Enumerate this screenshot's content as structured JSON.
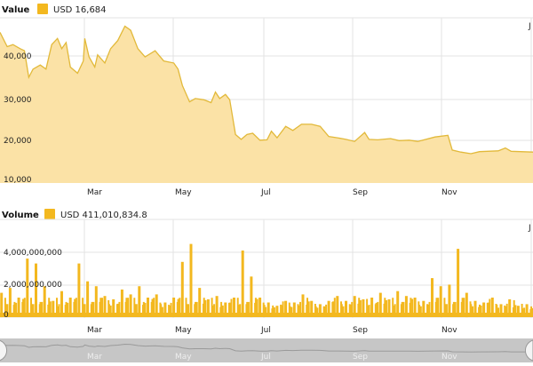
{
  "colors": {
    "value_fill": "#fbe2a6",
    "value_line": "#e2b93a",
    "volume_bar": "#f3b81f",
    "swatch": "#f3b81f",
    "navigator": "#c6c6c6"
  },
  "chart_data": [
    {
      "type": "area",
      "panel_title": "Value",
      "legend": {
        "currency": "USD",
        "value": "16,684",
        "label": "USD 16,684"
      },
      "y_ticks": [
        "10,000",
        "20,000",
        "30,000",
        "40,000"
      ],
      "y_tick_values": [
        10000,
        20000,
        30000,
        40000
      ],
      "ylim": [
        10000,
        50000
      ],
      "x_ticks": [
        "Mar",
        "May",
        "Jul",
        "Sep",
        "Nov"
      ],
      "x_tick_cut": "J",
      "grid": true,
      "points": [
        [
          "2021-12-24",
          46000
        ],
        [
          "2021-12-28",
          42500
        ],
        [
          "2022-01-01",
          43000
        ],
        [
          "2022-01-06",
          42000
        ],
        [
          "2022-01-09",
          41500
        ],
        [
          "2022-01-12",
          35000
        ],
        [
          "2022-01-15",
          37000
        ],
        [
          "2022-01-20",
          38000
        ],
        [
          "2022-01-24",
          37000
        ],
        [
          "2022-01-28",
          43000
        ],
        [
          "2022-02-01",
          44500
        ],
        [
          "2022-02-04",
          42000
        ],
        [
          "2022-02-07",
          43500
        ],
        [
          "2022-02-10",
          37500
        ],
        [
          "2022-02-15",
          36000
        ],
        [
          "2022-02-19",
          39000
        ],
        [
          "2022-02-20",
          44500
        ],
        [
          "2022-02-23",
          40000
        ],
        [
          "2022-02-27",
          37500
        ],
        [
          "2022-03-01",
          40500
        ],
        [
          "2022-03-06",
          38500
        ],
        [
          "2022-03-10",
          42000
        ],
        [
          "2022-03-15",
          44000
        ],
        [
          "2022-03-20",
          47500
        ],
        [
          "2022-03-24",
          46500
        ],
        [
          "2022-03-29",
          42000
        ],
        [
          "2022-04-03",
          40000
        ],
        [
          "2022-04-10",
          41500
        ],
        [
          "2022-04-16",
          39000
        ],
        [
          "2022-04-23",
          38500
        ],
        [
          "2022-04-26",
          37000
        ],
        [
          "2022-04-29",
          33000
        ],
        [
          "2022-05-04",
          29000
        ],
        [
          "2022-05-08",
          29800
        ],
        [
          "2022-05-14",
          29500
        ],
        [
          "2022-05-19",
          28800
        ],
        [
          "2022-05-22",
          31400
        ],
        [
          "2022-05-25",
          29800
        ],
        [
          "2022-05-29",
          30800
        ],
        [
          "2022-06-01",
          29500
        ],
        [
          "2022-06-05",
          21000
        ],
        [
          "2022-06-09",
          19800
        ],
        [
          "2022-06-13",
          21000
        ],
        [
          "2022-06-17",
          21300
        ],
        [
          "2022-06-22",
          19600
        ],
        [
          "2022-06-27",
          19700
        ],
        [
          "2022-06-30",
          21800
        ],
        [
          "2022-07-04",
          20200
        ],
        [
          "2022-07-10",
          23000
        ],
        [
          "2022-07-15",
          22000
        ],
        [
          "2022-07-21",
          23500
        ],
        [
          "2022-07-28",
          23500
        ],
        [
          "2022-08-03",
          23000
        ],
        [
          "2022-08-09",
          20500
        ],
        [
          "2022-08-15",
          20200
        ],
        [
          "2022-08-21",
          19800
        ],
        [
          "2022-08-27",
          19300
        ],
        [
          "2022-09-03",
          21500
        ],
        [
          "2022-09-06",
          19800
        ],
        [
          "2022-09-12",
          19700
        ],
        [
          "2022-09-21",
          20000
        ],
        [
          "2022-09-27",
          19500
        ],
        [
          "2022-10-04",
          19600
        ],
        [
          "2022-10-10",
          19300
        ],
        [
          "2022-10-22",
          20400
        ],
        [
          "2022-10-31",
          20800
        ],
        [
          "2022-11-03",
          17200
        ],
        [
          "2022-11-09",
          16700
        ],
        [
          "2022-11-16",
          16300
        ],
        [
          "2022-11-22",
          16800
        ],
        [
          "2022-12-05",
          17000
        ],
        [
          "2022-12-10",
          17700
        ],
        [
          "2022-12-14",
          16900
        ],
        [
          "2022-12-29",
          16700
        ]
      ]
    },
    {
      "type": "bar",
      "panel_title": "Volume",
      "legend": {
        "currency": "USD",
        "value": "411,010,834.8",
        "label": "USD 411,010,834.8"
      },
      "y_ticks": [
        "0",
        "2,000,000,000",
        "4,000,000,000"
      ],
      "y_tick_values": [
        0,
        2000000000,
        4000000000
      ],
      "ylim": [
        0,
        6000000000
      ],
      "x_ticks": [
        "Mar",
        "May",
        "Jul",
        "Sep",
        "Nov"
      ],
      "x_tick_cut": "J",
      "grid": true,
      "points": [
        [
          "2021-12-24",
          1500000000.0
        ],
        [
          "2021-12-30",
          1800000000.0
        ],
        [
          "2022-01-05",
          1200000000.0
        ],
        [
          "2022-01-11",
          3600000000.0
        ],
        [
          "2022-01-17",
          3300000000.0
        ],
        [
          "2022-01-23",
          1900000000.0
        ],
        [
          "2022-01-29",
          1000000000.0
        ],
        [
          "2022-02-04",
          1600000000.0
        ],
        [
          "2022-02-10",
          1200000000.0
        ],
        [
          "2022-02-16",
          3300000000.0
        ],
        [
          "2022-02-22",
          2200000000.0
        ],
        [
          "2022-02-28",
          1900000000.0
        ],
        [
          "2022-03-06",
          1300000000.0
        ],
        [
          "2022-03-12",
          1100000000.0
        ],
        [
          "2022-03-18",
          1700000000.0
        ],
        [
          "2022-03-24",
          1400000000.0
        ],
        [
          "2022-03-30",
          1900000000.0
        ],
        [
          "2022-04-05",
          1200000000.0
        ],
        [
          "2022-04-11",
          1400000000.0
        ],
        [
          "2022-04-17",
          900000000.0
        ],
        [
          "2022-04-23",
          1200000000.0
        ],
        [
          "2022-04-29",
          3400000000.0
        ],
        [
          "2022-05-05",
          4500000000.0
        ],
        [
          "2022-05-11",
          1800000000.0
        ],
        [
          "2022-05-17",
          1100000000.0
        ],
        [
          "2022-05-23",
          1300000000.0
        ],
        [
          "2022-05-29",
          900000000.0
        ],
        [
          "2022-06-04",
          1200000000.0
        ],
        [
          "2022-06-10",
          4100000000.0
        ],
        [
          "2022-06-16",
          2500000000.0
        ],
        [
          "2022-06-22",
          1200000000.0
        ],
        [
          "2022-06-28",
          900000000.0
        ],
        [
          "2022-07-04",
          700000000.0
        ],
        [
          "2022-07-10",
          1000000000.0
        ],
        [
          "2022-07-16",
          900000000.0
        ],
        [
          "2022-07-22",
          1400000000.0
        ],
        [
          "2022-07-28",
          1000000000.0
        ],
        [
          "2022-08-03",
          800000000.0
        ],
        [
          "2022-08-09",
          1000000000.0
        ],
        [
          "2022-08-15",
          1300000000.0
        ],
        [
          "2022-08-21",
          1000000000.0
        ],
        [
          "2022-08-27",
          1300000000.0
        ],
        [
          "2022-09-02",
          1100000000.0
        ],
        [
          "2022-09-08",
          1200000000.0
        ],
        [
          "2022-09-14",
          1500000000.0
        ],
        [
          "2022-09-20",
          1100000000.0
        ],
        [
          "2022-09-26",
          1600000000.0
        ],
        [
          "2022-10-02",
          1300000000.0
        ],
        [
          "2022-10-08",
          1200000000.0
        ],
        [
          "2022-10-14",
          1000000000.0
        ],
        [
          "2022-10-20",
          2400000000.0
        ],
        [
          "2022-10-26",
          1900000000.0
        ],
        [
          "2022-11-01",
          2000000000.0
        ],
        [
          "2022-11-07",
          4200000000.0
        ],
        [
          "2022-11-13",
          1500000000.0
        ],
        [
          "2022-11-19",
          1000000000.0
        ],
        [
          "2022-11-25",
          900000000.0
        ],
        [
          "2022-12-01",
          1200000000.0
        ],
        [
          "2022-12-07",
          800000000.0
        ],
        [
          "2022-12-13",
          1100000000.0
        ],
        [
          "2022-12-19",
          700000000.0
        ],
        [
          "2022-12-25",
          800000000.0
        ],
        [
          "2022-12-31",
          600000000.0
        ]
      ]
    }
  ],
  "navigator": {
    "x_ticks": [
      "Mar",
      "May",
      "Jul",
      "Sep",
      "Nov"
    ]
  }
}
